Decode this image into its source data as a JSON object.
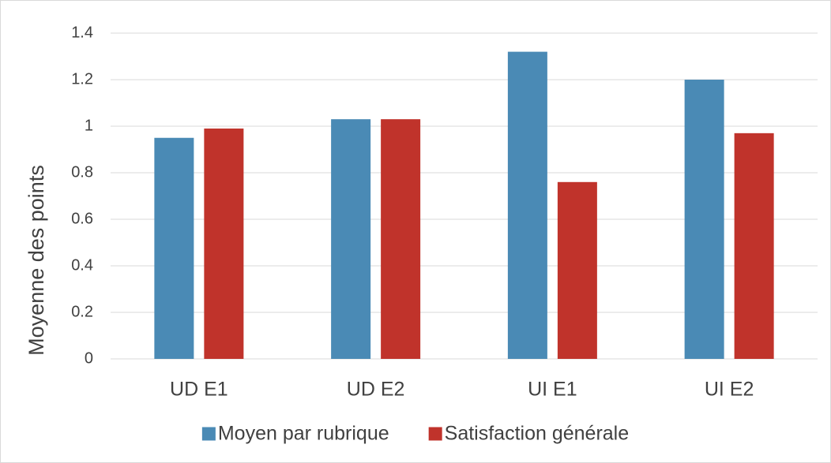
{
  "chart_data": {
    "type": "bar",
    "ylabel": "Moyenne des points",
    "categories": [
      "UD E1",
      "UD E2",
      "UI E1",
      "UI E2"
    ],
    "series": [
      {
        "name": "Moyen par rubrique",
        "color": "#4a8ab5",
        "values": [
          0.95,
          1.03,
          1.32,
          1.2
        ]
      },
      {
        "name": "Satisfaction générale",
        "color": "#c0332b",
        "values": [
          0.99,
          1.03,
          0.76,
          0.97
        ]
      }
    ],
    "ylim": [
      0,
      1.4
    ],
    "yticks": [
      0,
      0.2,
      0.4,
      0.6,
      0.8,
      1,
      1.2,
      1.4
    ],
    "grid": true,
    "legend": "bottom"
  }
}
